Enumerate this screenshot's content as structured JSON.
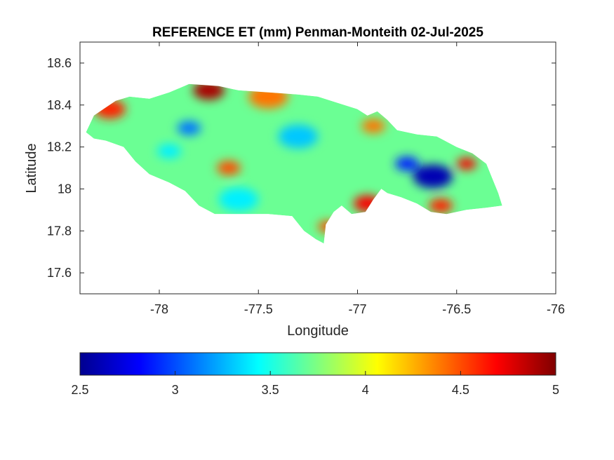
{
  "chart_data": {
    "type": "heatmap",
    "title": "REFERENCE ET (mm) Penman-Monteith 02-Jul-2025",
    "xlabel": "Longitude",
    "ylabel": "Latitude",
    "xlim": [
      -78.4,
      -76
    ],
    "ylim": [
      17.5,
      18.7
    ],
    "xticks": [
      -78,
      -77.5,
      -77,
      -76.5,
      -76
    ],
    "xtick_labels": [
      "-78",
      "-77.5",
      "-77",
      "-76.5",
      "-76"
    ],
    "yticks": [
      17.6,
      17.8,
      18,
      18.2,
      18.4,
      18.6
    ],
    "ytick_labels": [
      "17.6",
      "17.8",
      "18",
      "18.2",
      "18.4",
      "18.6"
    ],
    "grid": false,
    "colormap": "jet",
    "colorbar": {
      "location": "bottom",
      "range": [
        2.5,
        5
      ],
      "ticks": [
        2.5,
        3,
        3.5,
        4,
        4.5,
        5
      ],
      "tick_labels": [
        "2.5",
        "3",
        "3.5",
        "4",
        "4.5",
        "5"
      ]
    },
    "region_outline": [
      [
        -78.37,
        18.27
      ],
      [
        -78.33,
        18.35
      ],
      [
        -78.22,
        18.42
      ],
      [
        -78.15,
        18.44
      ],
      [
        -78.05,
        18.43
      ],
      [
        -77.95,
        18.46
      ],
      [
        -77.85,
        18.5
      ],
      [
        -77.7,
        18.49
      ],
      [
        -77.6,
        18.47
      ],
      [
        -77.45,
        18.46
      ],
      [
        -77.3,
        18.45
      ],
      [
        -77.2,
        18.44
      ],
      [
        -77.1,
        18.41
      ],
      [
        -77.0,
        18.38
      ],
      [
        -76.95,
        18.35
      ],
      [
        -76.9,
        18.37
      ],
      [
        -76.85,
        18.33
      ],
      [
        -76.8,
        18.28
      ],
      [
        -76.7,
        18.26
      ],
      [
        -76.6,
        18.25
      ],
      [
        -76.5,
        18.2
      ],
      [
        -76.42,
        18.17
      ],
      [
        -76.35,
        18.12
      ],
      [
        -76.32,
        18.05
      ],
      [
        -76.29,
        17.98
      ],
      [
        -76.27,
        17.92
      ],
      [
        -76.35,
        17.91
      ],
      [
        -76.45,
        17.9
      ],
      [
        -76.55,
        17.88
      ],
      [
        -76.63,
        17.89
      ],
      [
        -76.7,
        17.93
      ],
      [
        -76.78,
        17.96
      ],
      [
        -76.85,
        17.98
      ],
      [
        -76.88,
        18.0
      ],
      [
        -76.92,
        17.95
      ],
      [
        -76.96,
        17.89
      ],
      [
        -77.03,
        17.88
      ],
      [
        -77.08,
        17.92
      ],
      [
        -77.12,
        17.89
      ],
      [
        -77.16,
        17.83
      ],
      [
        -77.17,
        17.74
      ],
      [
        -77.21,
        17.76
      ],
      [
        -77.27,
        17.8
      ],
      [
        -77.33,
        17.87
      ],
      [
        -77.45,
        17.88
      ],
      [
        -77.6,
        17.88
      ],
      [
        -77.72,
        17.88
      ],
      [
        -77.8,
        17.92
      ],
      [
        -77.87,
        17.99
      ],
      [
        -77.95,
        18.03
      ],
      [
        -78.05,
        18.07
      ],
      [
        -78.12,
        18.13
      ],
      [
        -78.18,
        18.2
      ],
      [
        -78.27,
        18.23
      ],
      [
        -78.33,
        18.24
      ]
    ],
    "field_base_value": 3.7,
    "anomalies": [
      {
        "lon": -77.75,
        "lat": 18.47,
        "value": 4.9,
        "radius": 0.08
      },
      {
        "lon": -78.25,
        "lat": 18.38,
        "value": 4.6,
        "radius": 0.08
      },
      {
        "lon": -77.45,
        "lat": 18.44,
        "value": 4.4,
        "radius": 0.1
      },
      {
        "lon": -77.65,
        "lat": 18.1,
        "value": 4.5,
        "radius": 0.06
      },
      {
        "lon": -76.92,
        "lat": 18.3,
        "value": 4.4,
        "radius": 0.06
      },
      {
        "lon": -76.45,
        "lat": 18.12,
        "value": 4.7,
        "radius": 0.05
      },
      {
        "lon": -76.95,
        "lat": 17.93,
        "value": 4.7,
        "radius": 0.07
      },
      {
        "lon": -77.15,
        "lat": 17.82,
        "value": 4.5,
        "radius": 0.05
      },
      {
        "lon": -76.58,
        "lat": 17.92,
        "value": 4.6,
        "radius": 0.06
      },
      {
        "lon": -76.62,
        "lat": 18.06,
        "value": 2.6,
        "radius": 0.1
      },
      {
        "lon": -76.75,
        "lat": 18.12,
        "value": 2.9,
        "radius": 0.06
      },
      {
        "lon": -77.85,
        "lat": 18.29,
        "value": 3.1,
        "radius": 0.06
      },
      {
        "lon": -77.3,
        "lat": 18.25,
        "value": 3.3,
        "radius": 0.1
      },
      {
        "lon": -77.6,
        "lat": 17.95,
        "value": 3.4,
        "radius": 0.1
      },
      {
        "lon": -77.95,
        "lat": 18.18,
        "value": 3.4,
        "radius": 0.06
      }
    ]
  }
}
